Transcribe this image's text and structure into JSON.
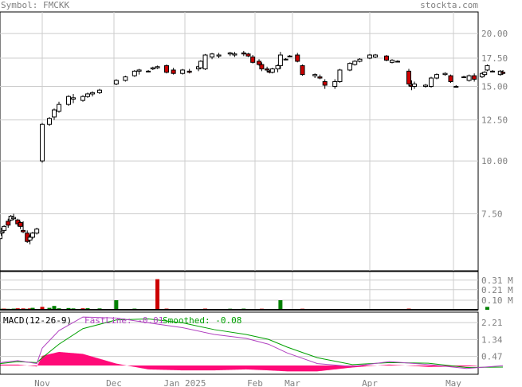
{
  "header": {
    "symbol_label": "Symbol: FMCKK",
    "site": "stockta.com"
  },
  "colors": {
    "up_candle": "#ffffff",
    "down_candle": "#cc0000",
    "grid": "#cccccc",
    "frame": "#000000",
    "fastline": "#b040c0",
    "smoothed": "#00a000",
    "histogram": "#ff0a78",
    "volume_down": "#cc0000",
    "volume_up": "#008000"
  },
  "chart_data": [
    {
      "type": "candlestick",
      "panel": "price",
      "y_scale": "log",
      "ylim": [
        5.5,
        22.5
      ],
      "yticks": [
        "20.00",
        "17.50",
        "15.00",
        "12.50",
        "10.00",
        "7.50"
      ],
      "x_month_labels": [
        "Nov",
        "Dec",
        "Jan 2025",
        "Feb",
        "Mar",
        "Apr",
        "May"
      ],
      "grid": true,
      "candles": [
        {
          "d": "Oct 1",
          "o": 6.55,
          "h": 6.85,
          "l": 6.45,
          "c": 6.75
        },
        {
          "d": "Oct 2",
          "o": 6.75,
          "h": 6.95,
          "l": 6.65,
          "c": 6.8
        },
        {
          "d": "Oct 4",
          "o": 6.85,
          "h": 7.05,
          "l": 6.75,
          "c": 7.0
        },
        {
          "d": "Oct 7",
          "o": 7.2,
          "h": 7.3,
          "l": 6.95,
          "c": 7.05
        },
        {
          "d": "Oct 9",
          "o": 7.25,
          "h": 7.45,
          "l": 7.2,
          "c": 7.4
        },
        {
          "d": "Oct 11",
          "o": 7.3,
          "h": 7.5,
          "l": 7.25,
          "c": 7.35
        },
        {
          "d": "Oct 14",
          "o": 7.25,
          "h": 7.3,
          "l": 7.0,
          "c": 7.1
        },
        {
          "d": "Oct 16",
          "o": 7.15,
          "h": 7.2,
          "l": 6.9,
          "c": 7.0
        },
        {
          "d": "Oct 18",
          "o": 6.85,
          "h": 7.2,
          "l": 6.75,
          "c": 6.8
        },
        {
          "d": "Oct 21",
          "o": 6.75,
          "h": 6.85,
          "l": 6.4,
          "c": 6.45
        },
        {
          "d": "Oct 23",
          "o": 6.5,
          "h": 6.7,
          "l": 6.35,
          "c": 6.6
        },
        {
          "d": "Oct 25",
          "o": 6.6,
          "h": 6.8,
          "l": 6.55,
          "c": 6.75
        },
        {
          "d": "Oct 28",
          "o": 6.75,
          "h": 6.95,
          "l": 6.7,
          "c": 6.9
        },
        {
          "d": "Nov 1",
          "o": 10.0,
          "h": 12.3,
          "l": 9.9,
          "c": 12.2
        },
        {
          "d": "Nov 4",
          "o": 12.2,
          "h": 12.7,
          "l": 12.1,
          "c": 12.6
        },
        {
          "d": "Nov 6",
          "o": 12.7,
          "h": 13.3,
          "l": 12.5,
          "c": 13.2
        },
        {
          "d": "Nov 8",
          "o": 13.1,
          "h": 13.8,
          "l": 13.0,
          "c": 13.6
        },
        {
          "d": "Nov 12",
          "o": 13.6,
          "h": 14.3,
          "l": 13.5,
          "c": 14.2
        },
        {
          "d": "Nov 14",
          "o": 14.0,
          "h": 14.4,
          "l": 13.7,
          "c": 14.1
        },
        {
          "d": "Nov 18",
          "o": 13.9,
          "h": 14.3,
          "l": 13.8,
          "c": 14.2
        },
        {
          "d": "Nov 20",
          "o": 14.2,
          "h": 14.5,
          "l": 14.1,
          "c": 14.4
        },
        {
          "d": "Nov 22",
          "o": 14.4,
          "h": 14.6,
          "l": 14.2,
          "c": 14.5
        },
        {
          "d": "Nov 25",
          "o": 14.5,
          "h": 14.8,
          "l": 14.4,
          "c": 14.7
        },
        {
          "d": "Dec 2",
          "o": 15.2,
          "h": 15.6,
          "l": 15.1,
          "c": 15.5
        },
        {
          "d": "Dec 6",
          "o": 15.5,
          "h": 15.9,
          "l": 15.4,
          "c": 15.8
        },
        {
          "d": "Dec 10",
          "o": 15.9,
          "h": 16.4,
          "l": 15.8,
          "c": 16.3
        },
        {
          "d": "Dec 12",
          "o": 16.3,
          "h": 16.5,
          "l": 16.0,
          "c": 16.4
        },
        {
          "d": "Dec 16",
          "o": 16.3,
          "h": 16.4,
          "l": 16.2,
          "c": 16.3
        },
        {
          "d": "Dec 18",
          "o": 16.5,
          "h": 16.7,
          "l": 16.4,
          "c": 16.6
        },
        {
          "d": "Dec 20",
          "o": 16.6,
          "h": 16.8,
          "l": 16.5,
          "c": 16.7
        },
        {
          "d": "Dec 24",
          "o": 16.8,
          "h": 16.9,
          "l": 16.1,
          "c": 16.2
        },
        {
          "d": "Dec 27",
          "o": 16.4,
          "h": 16.6,
          "l": 16.0,
          "c": 16.1
        },
        {
          "d": "Dec 31",
          "o": 16.1,
          "h": 16.5,
          "l": 16.0,
          "c": 16.4
        },
        {
          "d": "Jan 3",
          "o": 16.3,
          "h": 16.5,
          "l": 16.1,
          "c": 16.2
        },
        {
          "d": "Jan 7",
          "o": 16.5,
          "h": 16.8,
          "l": 16.3,
          "c": 16.7
        },
        {
          "d": "Jan 8",
          "o": 16.6,
          "h": 17.3,
          "l": 16.5,
          "c": 17.2
        },
        {
          "d": "Jan 10",
          "o": 16.5,
          "h": 17.9,
          "l": 16.4,
          "c": 17.8
        },
        {
          "d": "Jan 13",
          "o": 17.6,
          "h": 18.0,
          "l": 17.4,
          "c": 17.9
        },
        {
          "d": "Jan 16",
          "o": 17.7,
          "h": 18.0,
          "l": 17.5,
          "c": 17.8
        },
        {
          "d": "Jan 21",
          "o": 17.9,
          "h": 18.1,
          "l": 17.7,
          "c": 18.0
        },
        {
          "d": "Jan 23",
          "o": 17.8,
          "h": 18.1,
          "l": 17.6,
          "c": 17.9
        },
        {
          "d": "Jan 27",
          "o": 18.0,
          "h": 18.2,
          "l": 17.7,
          "c": 17.9
        },
        {
          "d": "Jan 29",
          "o": 17.9,
          "h": 18.0,
          "l": 17.6,
          "c": 17.7
        },
        {
          "d": "Jan 31",
          "o": 17.6,
          "h": 17.8,
          "l": 17.0,
          "c": 17.1
        },
        {
          "d": "Feb 4",
          "o": 17.2,
          "h": 17.4,
          "l": 16.8,
          "c": 16.9
        },
        {
          "d": "Feb 6",
          "o": 16.9,
          "h": 17.1,
          "l": 16.3,
          "c": 16.5
        },
        {
          "d": "Feb 10",
          "o": 16.5,
          "h": 16.7,
          "l": 16.2,
          "c": 16.4
        },
        {
          "d": "Feb 12",
          "o": 16.3,
          "h": 16.4,
          "l": 16.1,
          "c": 16.2
        },
        {
          "d": "Feb 14",
          "o": 16.2,
          "h": 16.6,
          "l": 16.1,
          "c": 16.5
        },
        {
          "d": "Feb 18",
          "o": 16.5,
          "h": 16.9,
          "l": 16.2,
          "c": 16.8
        },
        {
          "d": "Feb 20",
          "o": 16.8,
          "h": 18.1,
          "l": 16.5,
          "c": 17.8
        },
        {
          "d": "Feb 24",
          "o": 17.4,
          "h": 17.5,
          "l": 17.3,
          "c": 17.4
        },
        {
          "d": "Feb 27",
          "o": 17.7,
          "h": 17.8,
          "l": 17.6,
          "c": 17.7
        },
        {
          "d": "Mar 3",
          "o": 17.8,
          "h": 18.0,
          "l": 17.1,
          "c": 17.2
        },
        {
          "d": "Mar 5",
          "o": 16.8,
          "h": 16.9,
          "l": 15.9,
          "c": 16.0
        },
        {
          "d": "Mar 10",
          "o": 15.9,
          "h": 16.1,
          "l": 15.7,
          "c": 16.0
        },
        {
          "d": "Mar 12",
          "o": 15.8,
          "h": 16.0,
          "l": 15.6,
          "c": 15.7
        },
        {
          "d": "Mar 14",
          "o": 15.4,
          "h": 15.6,
          "l": 14.8,
          "c": 15.1
        },
        {
          "d": "Mar 18",
          "o": 15.0,
          "h": 15.6,
          "l": 14.8,
          "c": 15.4
        },
        {
          "d": "Mar 20",
          "o": 15.4,
          "h": 16.5,
          "l": 15.3,
          "c": 16.4
        },
        {
          "d": "Mar 24",
          "o": 16.4,
          "h": 17.1,
          "l": 16.3,
          "c": 17.0
        },
        {
          "d": "Mar 26",
          "o": 16.9,
          "h": 17.3,
          "l": 16.8,
          "c": 17.2
        },
        {
          "d": "Mar 28",
          "o": 17.2,
          "h": 17.5,
          "l": 17.1,
          "c": 17.4
        },
        {
          "d": "Apr 1",
          "o": 17.5,
          "h": 17.9,
          "l": 17.4,
          "c": 17.8
        },
        {
          "d": "Apr 3",
          "o": 17.6,
          "h": 17.9,
          "l": 17.5,
          "c": 17.8
        },
        {
          "d": "Apr 7",
          "o": 17.7,
          "h": 17.8,
          "l": 17.2,
          "c": 17.3
        },
        {
          "d": "Apr 9",
          "o": 17.1,
          "h": 17.4,
          "l": 17.0,
          "c": 17.3
        },
        {
          "d": "Apr 11",
          "o": 17.2,
          "h": 17.3,
          "l": 17.1,
          "c": 17.2
        },
        {
          "d": "Apr 15",
          "o": 16.3,
          "h": 16.5,
          "l": 15.0,
          "c": 15.2
        },
        {
          "d": "Apr 16",
          "o": 15.1,
          "h": 15.5,
          "l": 14.7,
          "c": 15.0
        },
        {
          "d": "Apr 17",
          "o": 15.0,
          "h": 15.4,
          "l": 14.8,
          "c": 15.2
        },
        {
          "d": "Apr 21",
          "o": 15.0,
          "h": 15.2,
          "l": 14.9,
          "c": 15.1
        },
        {
          "d": "Apr 23",
          "o": 15.0,
          "h": 15.8,
          "l": 14.9,
          "c": 15.7
        },
        {
          "d": "Apr 25",
          "o": 15.7,
          "h": 16.1,
          "l": 15.6,
          "c": 16.0
        },
        {
          "d": "Apr 28",
          "o": 16.0,
          "h": 16.2,
          "l": 15.9,
          "c": 16.1
        },
        {
          "d": "Apr 30",
          "o": 15.9,
          "h": 16.0,
          "l": 15.3,
          "c": 15.4
        },
        {
          "d": "May 2",
          "o": 15.0,
          "h": 15.1,
          "l": 14.9,
          "c": 15.0
        },
        {
          "d": "May 5",
          "o": 15.8,
          "h": 15.9,
          "l": 15.7,
          "c": 15.8
        },
        {
          "d": "May 7",
          "o": 15.5,
          "h": 16.0,
          "l": 15.4,
          "c": 15.9
        },
        {
          "d": "May 9",
          "o": 15.9,
          "h": 16.1,
          "l": 15.4,
          "c": 15.6
        },
        {
          "d": "May 12",
          "o": 15.8,
          "h": 16.2,
          "l": 15.7,
          "c": 16.1
        },
        {
          "d": "May 13",
          "o": 16.0,
          "h": 16.3,
          "l": 15.9,
          "c": 16.2
        },
        {
          "d": "May 14",
          "o": 16.4,
          "h": 16.9,
          "l": 16.3,
          "c": 16.8
        },
        {
          "d": "May 16",
          "o": 16.3,
          "h": 16.4,
          "l": 16.2,
          "c": 16.3
        },
        {
          "d": "May 19",
          "o": 16.0,
          "h": 16.4,
          "l": 15.9,
          "c": 16.3
        },
        {
          "d": "May 20",
          "o": 16.2,
          "h": 16.4,
          "l": 16.0,
          "c": 16.1
        }
      ]
    },
    {
      "type": "bar",
      "panel": "volume",
      "ylim": [
        0,
        0.4
      ],
      "unit": "M",
      "yticks": [
        "0.31 M",
        "0.21 M",
        "0.10 M"
      ],
      "bars": [
        {
          "d": "Oct 1",
          "v": 0.01,
          "dir": "up"
        },
        {
          "d": "Oct 2",
          "v": 0.01,
          "dir": "up"
        },
        {
          "d": "Oct 4",
          "v": 0.012,
          "dir": "down"
        },
        {
          "d": "Oct 7",
          "v": 0.01,
          "dir": "up"
        },
        {
          "d": "Oct 11",
          "v": 0.012,
          "dir": "up"
        },
        {
          "d": "Oct 14",
          "v": 0.015,
          "dir": "down"
        },
        {
          "d": "Oct 18",
          "v": 0.014,
          "dir": "down"
        },
        {
          "d": "Oct 21",
          "v": 0.01,
          "dir": "up"
        },
        {
          "d": "Oct 23",
          "v": 0.014,
          "dir": "down"
        },
        {
          "d": "Oct 25",
          "v": 0.02,
          "dir": "up"
        },
        {
          "d": "Nov 1",
          "v": 0.03,
          "dir": "down"
        },
        {
          "d": "Nov 4",
          "v": 0.02,
          "dir": "up"
        },
        {
          "d": "Nov 6",
          "v": 0.04,
          "dir": "up"
        },
        {
          "d": "Nov 8",
          "v": 0.015,
          "dir": "up"
        },
        {
          "d": "Nov 12",
          "v": 0.018,
          "dir": "up"
        },
        {
          "d": "Nov 14",
          "v": 0.014,
          "dir": "up"
        },
        {
          "d": "Nov 18",
          "v": 0.015,
          "dir": "down"
        },
        {
          "d": "Nov 20",
          "v": 0.016,
          "dir": "up"
        },
        {
          "d": "Nov 25",
          "v": 0.014,
          "dir": "up"
        },
        {
          "d": "Dec 2",
          "v": 0.1,
          "dir": "up"
        },
        {
          "d": "Dec 10",
          "v": 0.012,
          "dir": "up"
        },
        {
          "d": "Dec 20",
          "v": 0.32,
          "dir": "down"
        },
        {
          "d": "Dec 24",
          "v": 0.012,
          "dir": "down"
        },
        {
          "d": "Jan 10",
          "v": 0.012,
          "dir": "down"
        },
        {
          "d": "Jan 21",
          "v": 0.011,
          "dir": "up"
        },
        {
          "d": "Jan 27",
          "v": 0.012,
          "dir": "up"
        },
        {
          "d": "Feb 6",
          "v": 0.011,
          "dir": "down"
        },
        {
          "d": "Feb 20",
          "v": 0.1,
          "dir": "up"
        },
        {
          "d": "Mar 5",
          "v": 0.011,
          "dir": "down"
        },
        {
          "d": "Apr 15",
          "v": 0.012,
          "dir": "down"
        },
        {
          "d": "May 14",
          "v": 0.03,
          "dir": "up"
        }
      ]
    },
    {
      "type": "line",
      "panel": "macd",
      "title": "MACD(12-26-9)",
      "fastline_label": "FastLine:",
      "fastline_value": "-0.01",
      "smoothed_label": "Smoothed:",
      "smoothed_value": "-0.08",
      "ylim": [
        -0.45,
        2.75
      ],
      "yticks": [
        "2.21",
        "1.34",
        "0.47"
      ],
      "x": [
        "Oct 1",
        "Oct 14",
        "Oct 28",
        "Nov 1",
        "Nov 8",
        "Nov 18",
        "Dec 2",
        "Dec 16",
        "Dec 31",
        "Jan 14",
        "Jan 28",
        "Feb 11",
        "Feb 25",
        "Mar 11",
        "Mar 25",
        "Apr 8",
        "Apr 22",
        "May 6",
        "May 20"
      ],
      "series": [
        {
          "name": "FastLine",
          "values": [
            0.15,
            0.25,
            0.1,
            0.9,
            1.8,
            2.5,
            2.45,
            2.2,
            1.95,
            1.6,
            1.4,
            1.1,
            0.65,
            0.1,
            -0.05,
            0.2,
            0.05,
            -0.15,
            -0.01
          ]
        },
        {
          "name": "Smoothed",
          "values": [
            0.1,
            0.2,
            0.15,
            0.4,
            1.1,
            1.9,
            2.35,
            2.4,
            2.2,
            1.85,
            1.6,
            1.35,
            0.95,
            0.4,
            0.05,
            0.15,
            0.12,
            -0.1,
            -0.08
          ]
        },
        {
          "name": "Histogram",
          "values": [
            0.05,
            0.05,
            -0.05,
            0.5,
            0.7,
            0.6,
            0.1,
            -0.2,
            -0.25,
            -0.25,
            -0.2,
            -0.25,
            -0.3,
            -0.3,
            -0.1,
            0.05,
            -0.07,
            -0.05,
            0.07
          ]
        }
      ]
    }
  ]
}
